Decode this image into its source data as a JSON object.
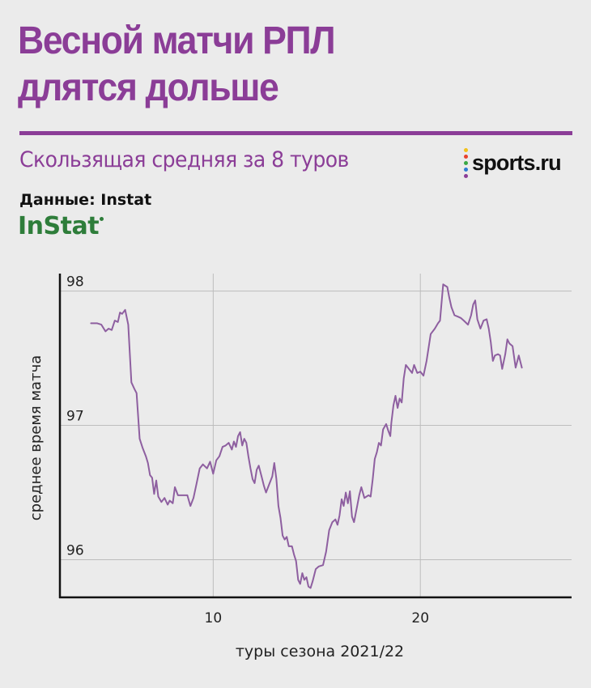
{
  "header": {
    "title_line1": "Весной матчи РПЛ",
    "title_line2": "длятся дольше",
    "subtitle": "Скользящая средняя за 8 туров",
    "source": "Данные: Instat",
    "brand": "sports.ru",
    "logo": "InStat"
  },
  "colors": {
    "accent": "#8b3d97",
    "line": "#8e5fa0",
    "logo": "#2e7d3a",
    "brand_dots": [
      "#f2c21b",
      "#e8412c",
      "#3aa845",
      "#2f7bd3",
      "#8b3d97"
    ]
  },
  "chart_data": {
    "type": "line",
    "title": "",
    "xlabel": "туры сезона 2021/22",
    "ylabel": "среднее время матча",
    "xlim": [
      2.6,
      27.3
    ],
    "ylim": [
      95.72,
      98.13
    ],
    "xticks": [
      10,
      20
    ],
    "yticks": [
      96,
      97,
      98
    ],
    "grid": true,
    "series": [
      {
        "values": [
          [
            4.1,
            97.76
          ],
          [
            4.4,
            97.76
          ],
          [
            4.6,
            97.75
          ],
          [
            4.8,
            97.7
          ],
          [
            4.95,
            97.72
          ],
          [
            5.1,
            97.71
          ],
          [
            5.25,
            97.78
          ],
          [
            5.4,
            97.77
          ],
          [
            5.5,
            97.84
          ],
          [
            5.6,
            97.83
          ],
          [
            5.75,
            97.86
          ],
          [
            5.9,
            97.75
          ],
          [
            6.05,
            97.32
          ],
          [
            6.2,
            97.27
          ],
          [
            6.3,
            97.24
          ],
          [
            6.45,
            96.9
          ],
          [
            6.6,
            96.83
          ],
          [
            6.75,
            96.77
          ],
          [
            6.85,
            96.72
          ],
          [
            6.95,
            96.63
          ],
          [
            7.05,
            96.61
          ],
          [
            7.15,
            96.49
          ],
          [
            7.25,
            96.59
          ],
          [
            7.35,
            96.47
          ],
          [
            7.5,
            96.43
          ],
          [
            7.65,
            96.46
          ],
          [
            7.8,
            96.41
          ],
          [
            7.9,
            96.44
          ],
          [
            8.05,
            96.42
          ],
          [
            8.15,
            96.54
          ],
          [
            8.3,
            96.48
          ],
          [
            8.5,
            96.48
          ],
          [
            8.75,
            96.48
          ],
          [
            8.9,
            96.4
          ],
          [
            9.05,
            96.46
          ],
          [
            9.2,
            96.57
          ],
          [
            9.35,
            96.68
          ],
          [
            9.5,
            96.71
          ],
          [
            9.7,
            96.68
          ],
          [
            9.85,
            96.73
          ],
          [
            10.0,
            96.64
          ],
          [
            10.15,
            96.74
          ],
          [
            10.3,
            96.77
          ],
          [
            10.45,
            96.84
          ],
          [
            10.6,
            96.85
          ],
          [
            10.75,
            96.87
          ],
          [
            10.9,
            96.82
          ],
          [
            11.0,
            96.88
          ],
          [
            11.1,
            96.84
          ],
          [
            11.2,
            96.92
          ],
          [
            11.3,
            96.95
          ],
          [
            11.4,
            96.85
          ],
          [
            11.5,
            96.9
          ],
          [
            11.6,
            96.87
          ],
          [
            11.7,
            96.77
          ],
          [
            11.8,
            96.68
          ],
          [
            11.9,
            96.6
          ],
          [
            12.0,
            96.57
          ],
          [
            12.1,
            96.67
          ],
          [
            12.2,
            96.7
          ],
          [
            12.35,
            96.61
          ],
          [
            12.45,
            96.55
          ],
          [
            12.55,
            96.5
          ],
          [
            12.7,
            96.56
          ],
          [
            12.85,
            96.62
          ],
          [
            12.95,
            96.72
          ],
          [
            13.05,
            96.6
          ],
          [
            13.15,
            96.4
          ],
          [
            13.25,
            96.31
          ],
          [
            13.35,
            96.18
          ],
          [
            13.45,
            96.15
          ],
          [
            13.55,
            96.17
          ],
          [
            13.65,
            96.1
          ],
          [
            13.8,
            96.1
          ],
          [
            13.9,
            96.04
          ],
          [
            14.0,
            95.99
          ],
          [
            14.1,
            95.85
          ],
          [
            14.2,
            95.82
          ],
          [
            14.3,
            95.9
          ],
          [
            14.4,
            95.85
          ],
          [
            14.5,
            95.87
          ],
          [
            14.6,
            95.8
          ],
          [
            14.7,
            95.79
          ],
          [
            14.8,
            95.84
          ],
          [
            14.95,
            95.93
          ],
          [
            15.1,
            95.95
          ],
          [
            15.3,
            95.96
          ],
          [
            15.45,
            96.06
          ],
          [
            15.6,
            96.22
          ],
          [
            15.75,
            96.28
          ],
          [
            15.9,
            96.3
          ],
          [
            16.0,
            96.26
          ],
          [
            16.1,
            96.33
          ],
          [
            16.2,
            96.45
          ],
          [
            16.3,
            96.4
          ],
          [
            16.4,
            96.5
          ],
          [
            16.5,
            96.42
          ],
          [
            16.6,
            96.51
          ],
          [
            16.7,
            96.32
          ],
          [
            16.8,
            96.28
          ],
          [
            16.95,
            96.4
          ],
          [
            17.05,
            96.48
          ],
          [
            17.15,
            96.54
          ],
          [
            17.3,
            96.46
          ],
          [
            17.5,
            96.48
          ],
          [
            17.6,
            96.47
          ],
          [
            17.7,
            96.6
          ],
          [
            17.8,
            96.75
          ],
          [
            17.9,
            96.8
          ],
          [
            18.0,
            96.87
          ],
          [
            18.1,
            96.85
          ],
          [
            18.2,
            96.97
          ],
          [
            18.35,
            97.01
          ],
          [
            18.45,
            96.96
          ],
          [
            18.55,
            96.92
          ],
          [
            18.6,
            97.02
          ],
          [
            18.7,
            97.15
          ],
          [
            18.8,
            97.22
          ],
          [
            18.9,
            97.13
          ],
          [
            19.0,
            97.2
          ],
          [
            19.1,
            97.17
          ],
          [
            19.2,
            97.35
          ],
          [
            19.3,
            97.45
          ],
          [
            19.45,
            97.42
          ],
          [
            19.6,
            97.39
          ],
          [
            19.7,
            97.45
          ],
          [
            19.85,
            97.39
          ],
          [
            20.0,
            97.4
          ],
          [
            20.15,
            97.37
          ],
          [
            20.3,
            97.48
          ],
          [
            20.5,
            97.68
          ],
          [
            20.7,
            97.72
          ],
          [
            20.85,
            97.76
          ],
          [
            20.95,
            97.78
          ],
          [
            21.1,
            98.05
          ],
          [
            21.3,
            98.03
          ],
          [
            21.4,
            97.95
          ],
          [
            21.5,
            97.88
          ],
          [
            21.65,
            97.82
          ],
          [
            21.8,
            97.81
          ],
          [
            21.95,
            97.8
          ],
          [
            22.1,
            97.78
          ],
          [
            22.3,
            97.75
          ],
          [
            22.45,
            97.82
          ],
          [
            22.55,
            97.9
          ],
          [
            22.65,
            97.93
          ],
          [
            22.75,
            97.79
          ],
          [
            22.9,
            97.72
          ],
          [
            23.05,
            97.78
          ],
          [
            23.2,
            97.79
          ],
          [
            23.3,
            97.72
          ],
          [
            23.4,
            97.62
          ],
          [
            23.5,
            97.48
          ],
          [
            23.6,
            97.52
          ],
          [
            23.75,
            97.53
          ],
          [
            23.85,
            97.52
          ],
          [
            23.95,
            97.42
          ],
          [
            24.1,
            97.53
          ],
          [
            24.2,
            97.64
          ],
          [
            24.3,
            97.61
          ],
          [
            24.45,
            97.59
          ],
          [
            24.6,
            97.43
          ],
          [
            24.75,
            97.52
          ],
          [
            24.9,
            97.43
          ]
        ]
      }
    ]
  }
}
